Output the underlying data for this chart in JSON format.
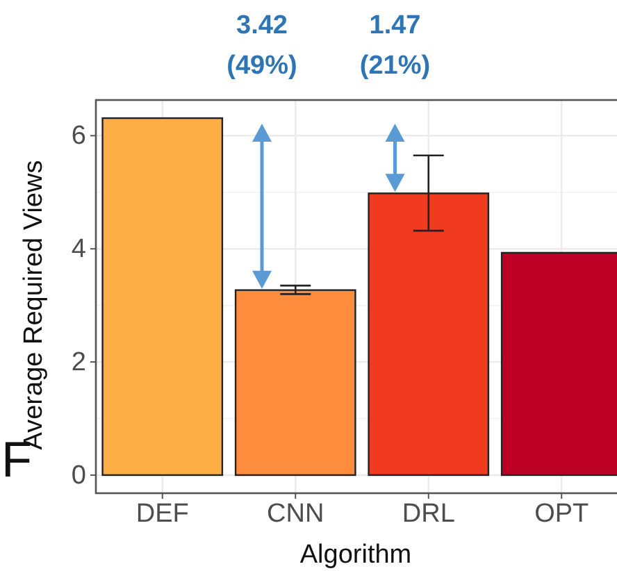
{
  "chart_data": {
    "type": "bar",
    "xlabel": "Algorithm",
    "ylabel": "Average Required Views",
    "categories": [
      "DEF",
      "CNN",
      "DRL",
      "OPT"
    ],
    "values": [
      6.31,
      3.27,
      4.98,
      3.93
    ],
    "colors": [
      "#fdae45",
      "#fd8d3c",
      "#f03b20",
      "#bd0026"
    ],
    "errors": [
      null,
      [
        3.2,
        3.35
      ],
      [
        4.32,
        5.65
      ],
      null
    ],
    "ylim": [
      -0.32,
      6.63
    ],
    "yticks": [
      0,
      2,
      4,
      6
    ],
    "grid": true,
    "annotations": [
      "3.42\n(49%)",
      "1.47\n(21%)",
      "F"
    ]
  }
}
